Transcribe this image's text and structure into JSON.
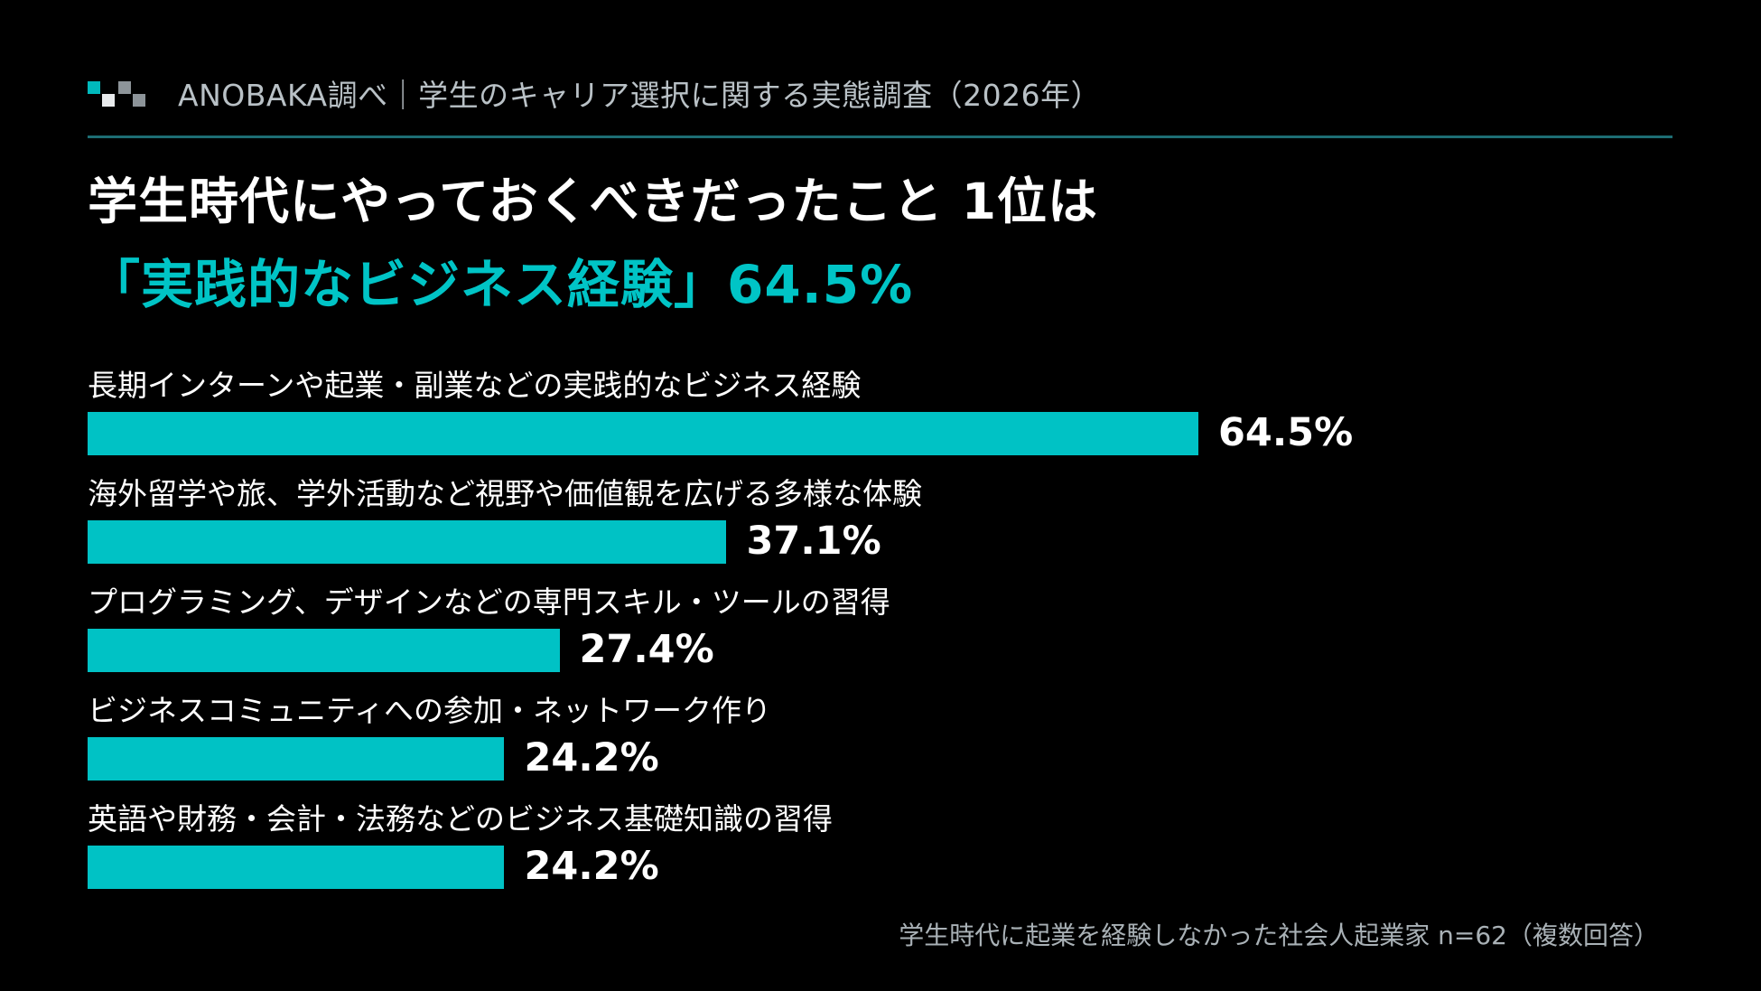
{
  "header": {
    "source_text": "ANOBAKA調べ｜学生のキャリア選択に関する実態調査（2026年）"
  },
  "headline": {
    "line1": "学生時代にやっておくべきだったこと 1位は",
    "line2": "「実践的なビジネス経験」64.5%"
  },
  "footnote": "学生時代に起業を経験しなかった社会人起業家 n=62（複数回答）",
  "colors": {
    "accent": "#00c4c6",
    "bar": "#00c2c5",
    "logo_cyan": "#00b9bc",
    "logo_gray": "#8d9499",
    "logo_light": "#e8eaec"
  },
  "chart_data": {
    "type": "bar",
    "orientation": "horizontal",
    "unit": "%",
    "xlim": [
      0,
      100
    ],
    "grid": false,
    "categories": [
      "長期インターンや起業・副業などの実践的なビジネス経験",
      "海外留学や旅、学外活動など視野や価値観を広げる多様な体験",
      "プログラミング、デザインなどの専門スキル・ツールの習得",
      "ビジネスコミュニティへの参加・ネットワーク作り",
      "英語や財務・会計・法務などのビジネス基礎知識の習得"
    ],
    "values": [
      64.5,
      37.1,
      27.4,
      24.2,
      24.2
    ],
    "value_labels": [
      "64.5%",
      "37.1%",
      "27.4%",
      "24.2%",
      "24.2%"
    ]
  }
}
